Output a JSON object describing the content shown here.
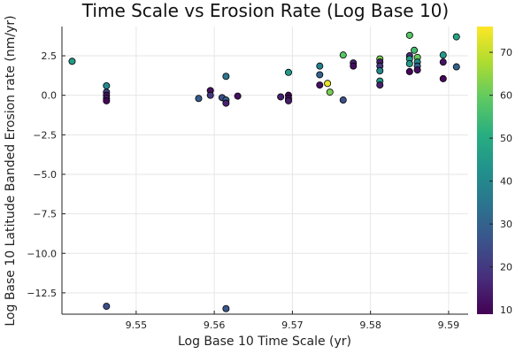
{
  "chart_data": {
    "type": "scatter",
    "title": "Time Scale vs Erosion Rate (Log Base 10)",
    "xlabel": "Log Base 10 Time Scale (yr)",
    "ylabel": "Log Base 10 Latitude Banded Erosion rate (nm/yr)",
    "xlim": [
      9.5405,
      9.5925
    ],
    "ylim": [
      -13.85,
      4.35
    ],
    "xticks": [
      9.55,
      9.56,
      9.57,
      9.58,
      9.59
    ],
    "xtick_labels": [
      "9.55",
      "9.56",
      "9.57",
      "9.58",
      "9.59"
    ],
    "yticks": [
      2.5,
      0.0,
      -2.5,
      -5.0,
      -7.5,
      -10.0,
      -12.5
    ],
    "ytick_labels": [
      "2.5",
      "0.0",
      "−2.5",
      "−5.0",
      "−7.5",
      "−10.0",
      "−12.5"
    ],
    "grid": true,
    "legend": "none",
    "colormap": "viridis",
    "colorbar": {
      "range": [
        9,
        76
      ],
      "ticks": [
        10,
        20,
        30,
        40,
        50,
        60,
        70
      ],
      "tick_labels": [
        "10",
        "20",
        "30",
        "40",
        "50",
        "60",
        "70"
      ]
    },
    "points": [
      {
        "x": 9.5418,
        "y": 2.15,
        "c": 45
      },
      {
        "x": 9.5462,
        "y": 0.6,
        "c": 40
      },
      {
        "x": 9.5462,
        "y": 0.2,
        "c": 22
      },
      {
        "x": 9.5462,
        "y": 0.0,
        "c": 12
      },
      {
        "x": 9.5462,
        "y": -0.2,
        "c": 15
      },
      {
        "x": 9.5462,
        "y": -0.35,
        "c": 10
      },
      {
        "x": 9.5462,
        "y": -13.35,
        "c": 25
      },
      {
        "x": 9.558,
        "y": -0.2,
        "c": 28
      },
      {
        "x": 9.5595,
        "y": 0.3,
        "c": 12
      },
      {
        "x": 9.5595,
        "y": 0.0,
        "c": 20
      },
      {
        "x": 9.561,
        "y": -0.15,
        "c": 25
      },
      {
        "x": 9.5615,
        "y": 1.2,
        "c": 35
      },
      {
        "x": 9.5615,
        "y": -0.3,
        "c": 30
      },
      {
        "x": 9.5615,
        "y": -0.5,
        "c": 15
      },
      {
        "x": 9.5615,
        "y": -13.5,
        "c": 27
      },
      {
        "x": 9.563,
        "y": -0.05,
        "c": 12
      },
      {
        "x": 9.5685,
        "y": -0.1,
        "c": 15
      },
      {
        "x": 9.5695,
        "y": 1.45,
        "c": 45
      },
      {
        "x": 9.5695,
        "y": 0.0,
        "c": 10
      },
      {
        "x": 9.5695,
        "y": -0.2,
        "c": 12
      },
      {
        "x": 9.5695,
        "y": -0.35,
        "c": 14
      },
      {
        "x": 9.5735,
        "y": 1.85,
        "c": 38
      },
      {
        "x": 9.5735,
        "y": 1.3,
        "c": 30
      },
      {
        "x": 9.5735,
        "y": 0.65,
        "c": 12
      },
      {
        "x": 9.5745,
        "y": 0.75,
        "c": 74
      },
      {
        "x": 9.5748,
        "y": 0.2,
        "c": 62
      },
      {
        "x": 9.5765,
        "y": 2.55,
        "c": 58
      },
      {
        "x": 9.5765,
        "y": -0.3,
        "c": 25
      },
      {
        "x": 9.5778,
        "y": 2.05,
        "c": 15
      },
      {
        "x": 9.5778,
        "y": 1.85,
        "c": 11
      },
      {
        "x": 9.5812,
        "y": 2.3,
        "c": 62
      },
      {
        "x": 9.5812,
        "y": 2.1,
        "c": 15
      },
      {
        "x": 9.5812,
        "y": 1.85,
        "c": 20
      },
      {
        "x": 9.5812,
        "y": 1.55,
        "c": 40
      },
      {
        "x": 9.5812,
        "y": 0.9,
        "c": 45
      },
      {
        "x": 9.5812,
        "y": 0.65,
        "c": 15
      },
      {
        "x": 9.585,
        "y": 3.8,
        "c": 58
      },
      {
        "x": 9.585,
        "y": 2.5,
        "c": 18
      },
      {
        "x": 9.585,
        "y": 2.3,
        "c": 45
      },
      {
        "x": 9.585,
        "y": 2.0,
        "c": 45
      },
      {
        "x": 9.585,
        "y": 1.5,
        "c": 10
      },
      {
        "x": 9.5856,
        "y": 2.85,
        "c": 55
      },
      {
        "x": 9.586,
        "y": 2.4,
        "c": 60
      },
      {
        "x": 9.586,
        "y": 2.1,
        "c": 40
      },
      {
        "x": 9.586,
        "y": 1.85,
        "c": 30
      },
      {
        "x": 9.586,
        "y": 1.6,
        "c": 12
      },
      {
        "x": 9.5893,
        "y": 2.55,
        "c": 45
      },
      {
        "x": 9.5893,
        "y": 2.1,
        "c": 12
      },
      {
        "x": 9.5893,
        "y": 1.05,
        "c": 10
      },
      {
        "x": 9.591,
        "y": 3.7,
        "c": 48
      },
      {
        "x": 9.591,
        "y": 1.8,
        "c": 30
      }
    ]
  }
}
